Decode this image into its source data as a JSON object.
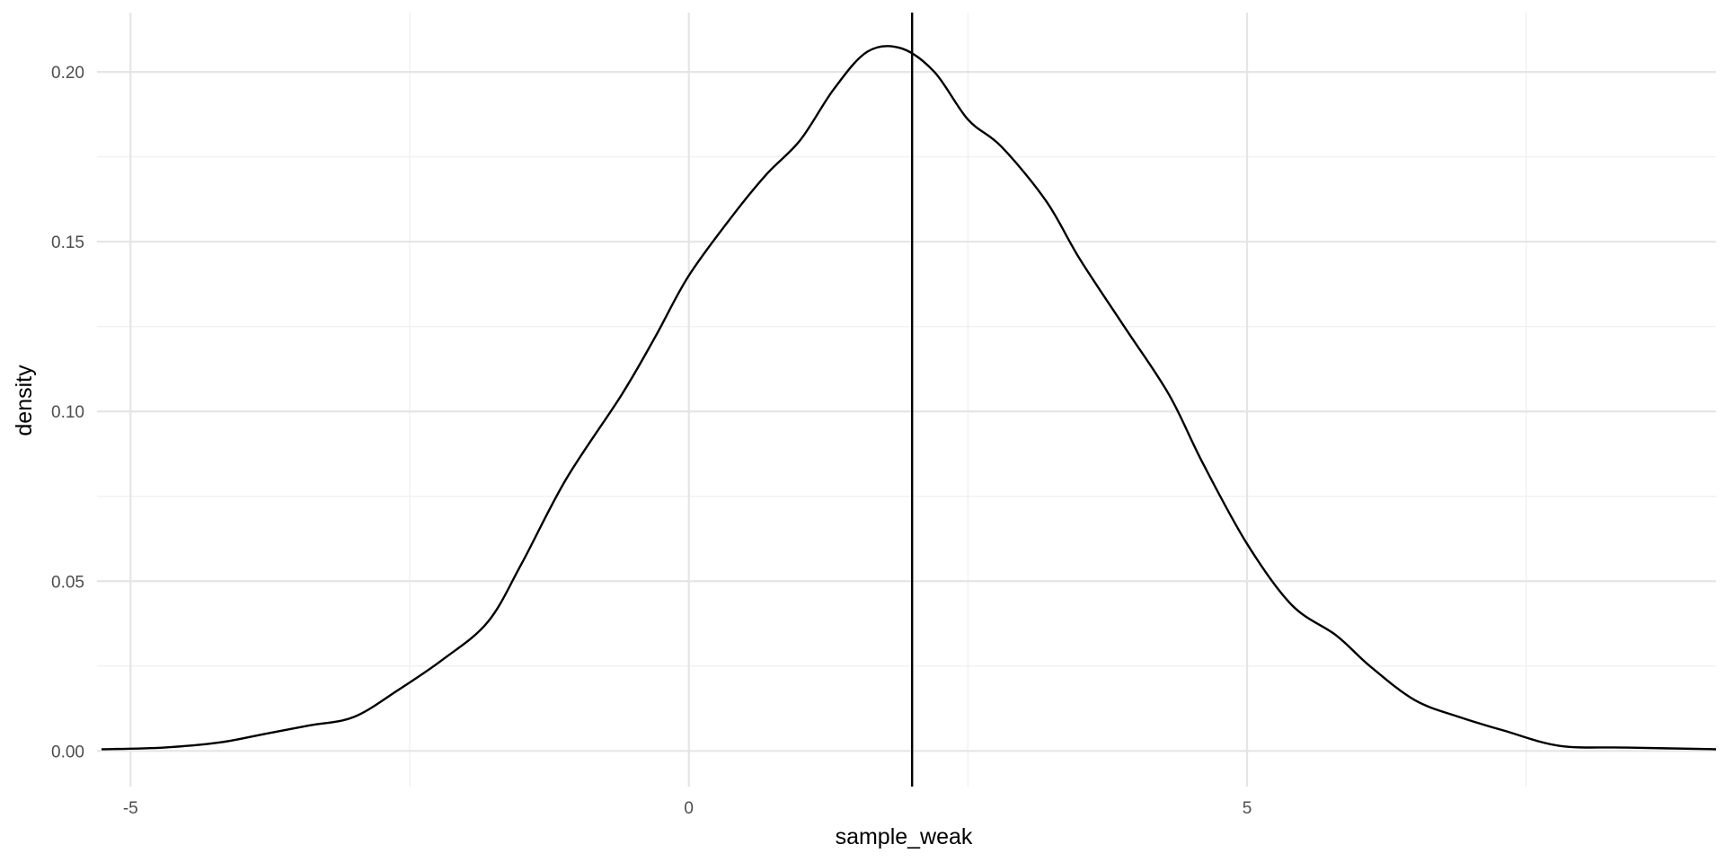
{
  "chart_data": {
    "type": "line",
    "title": "",
    "xlabel": "sample_weak",
    "ylabel": "density",
    "xlim": [
      -5.3,
      9.2
    ],
    "ylim": [
      -0.0105,
      0.2175
    ],
    "x_major_ticks": [
      -5,
      0,
      5
    ],
    "x_minor_ticks": [
      -2.5,
      2.5,
      7.5
    ],
    "y_major_ticks": [
      0.0,
      0.05,
      0.1,
      0.15,
      0.2
    ],
    "y_minor_ticks": [
      0.025,
      0.075,
      0.125,
      0.175
    ],
    "x_tick_labels": [
      "-5",
      "0",
      "5"
    ],
    "y_tick_labels": [
      "0.00",
      "0.05",
      "0.10",
      "0.15",
      "0.20"
    ],
    "grid": true,
    "legend": "none",
    "reference_line": {
      "type": "vertical",
      "x": 2.0
    },
    "series": [
      {
        "x": [
          -5.26,
          -4.7,
          -4.2,
          -3.8,
          -3.4,
          -3.0,
          -2.6,
          -2.2,
          -1.8,
          -1.5,
          -1.1,
          -0.6,
          -0.3,
          0.0,
          0.4,
          0.7,
          1.0,
          1.3,
          1.6,
          1.9,
          2.2,
          2.5,
          2.8,
          3.2,
          3.5,
          3.9,
          4.3,
          4.6,
          5.0,
          5.4,
          5.8,
          6.1,
          6.5,
          6.9,
          7.3,
          7.8,
          8.4,
          9.2
        ],
        "y": [
          0.0005,
          0.001,
          0.0025,
          0.005,
          0.0075,
          0.01,
          0.018,
          0.027,
          0.038,
          0.055,
          0.08,
          0.105,
          0.122,
          0.14,
          0.158,
          0.17,
          0.18,
          0.195,
          0.206,
          0.207,
          0.2,
          0.186,
          0.178,
          0.162,
          0.145,
          0.125,
          0.105,
          0.085,
          0.061,
          0.043,
          0.034,
          0.025,
          0.015,
          0.01,
          0.006,
          0.0015,
          0.001,
          0.0005
        ]
      }
    ]
  }
}
